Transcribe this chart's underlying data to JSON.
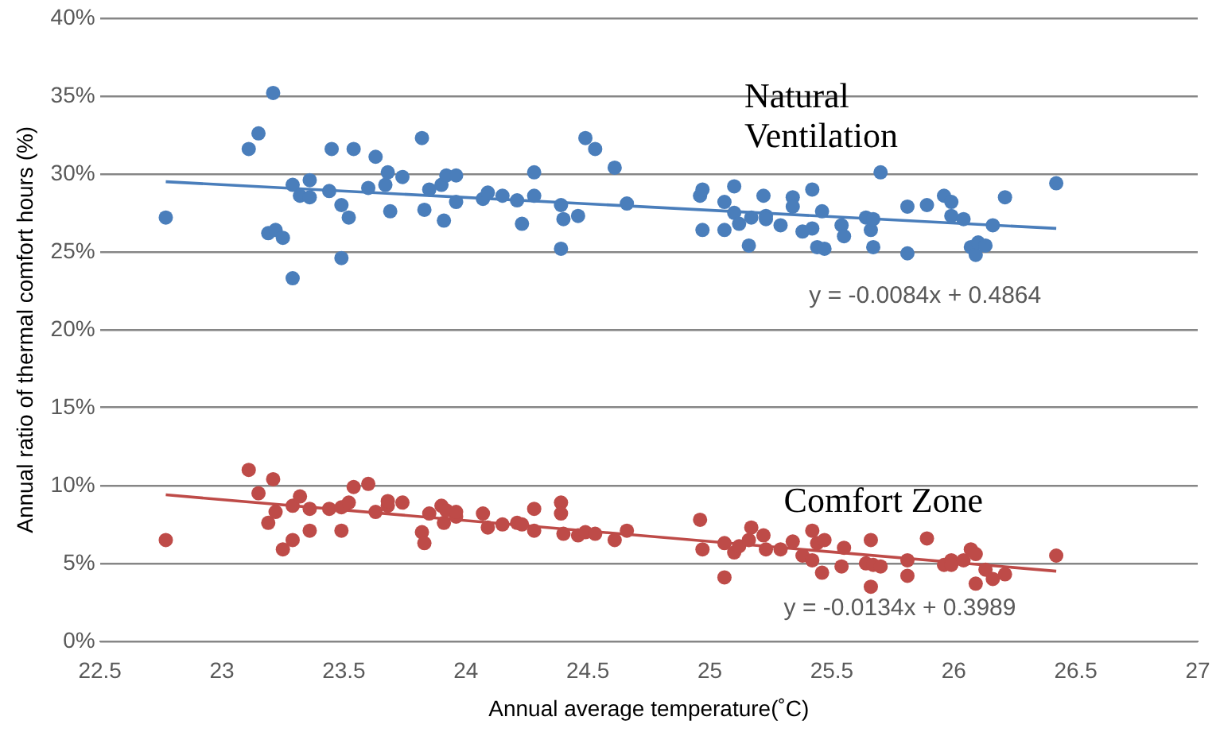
{
  "chart_data": {
    "type": "scatter",
    "xlabel": "Annual average temperature(˚C)",
    "ylabel": "Annual ratio of thermal comfort hours (%)",
    "xlim": [
      22.5,
      27
    ],
    "xticks": [
      22.5,
      23,
      23.5,
      24,
      24.5,
      25,
      25.5,
      26,
      26.5,
      27
    ],
    "ylim": [
      0,
      40
    ],
    "yticks": [
      {
        "value": 0,
        "label": "0%"
      },
      {
        "value": 5,
        "label": "5%"
      },
      {
        "value": 10,
        "label": "10%"
      },
      {
        "value": 15,
        "label": "15%"
      },
      {
        "value": 20,
        "label": "20%"
      },
      {
        "value": 25,
        "label": "25%"
      },
      {
        "value": 30,
        "label": "30%"
      },
      {
        "value": 35,
        "label": "35%"
      },
      {
        "value": 40,
        "label": "40%"
      }
    ],
    "grid": "y",
    "legend": false,
    "series": [
      {
        "marker": "circle",
        "color": "#4a7ebb",
        "x": [
          22.77,
          23.11,
          23.15,
          23.21,
          23.19,
          23.22,
          23.25,
          23.29,
          23.29,
          23.32,
          23.36,
          23.36,
          23.44,
          23.45,
          23.49,
          23.49,
          23.52,
          23.54,
          23.6,
          23.63,
          23.67,
          23.68,
          23.69,
          23.74,
          23.82,
          23.83,
          23.85,
          23.9,
          23.91,
          23.92,
          23.96,
          23.96,
          24.07,
          24.09,
          24.15,
          24.21,
          24.23,
          24.28,
          24.28,
          24.39,
          24.39,
          24.4,
          24.46,
          24.49,
          24.53,
          24.61,
          24.66,
          24.96,
          24.97,
          24.97,
          25.06,
          25.06,
          25.1,
          25.1,
          25.12,
          25.16,
          25.17,
          25.22,
          25.23,
          25.23,
          25.29,
          25.34,
          25.34,
          25.38,
          25.42,
          25.42,
          25.44,
          25.46,
          25.47,
          25.54,
          25.55,
          25.64,
          25.66,
          25.67,
          25.67,
          25.7,
          25.81,
          25.81,
          25.89,
          25.96,
          25.99,
          25.99,
          26.04,
          26.07,
          26.09,
          26.1,
          26.13,
          26.16,
          26.21,
          26.42
        ],
        "values": [
          27.2,
          31.6,
          32.6,
          35.2,
          26.2,
          26.4,
          25.9,
          23.3,
          29.3,
          28.6,
          29.6,
          28.5,
          28.9,
          31.6,
          28.0,
          24.6,
          27.2,
          31.6,
          29.1,
          31.1,
          29.3,
          30.1,
          27.6,
          29.8,
          32.3,
          27.7,
          29.0,
          29.3,
          27.0,
          29.9,
          29.9,
          28.2,
          28.4,
          28.8,
          28.6,
          28.3,
          26.8,
          30.1,
          28.6,
          28.0,
          25.2,
          27.1,
          27.3,
          32.3,
          31.6,
          30.4,
          28.1,
          28.6,
          29.0,
          26.4,
          28.2,
          26.4,
          29.2,
          27.5,
          26.8,
          25.4,
          27.2,
          28.6,
          27.3,
          27.1,
          26.7,
          28.5,
          27.9,
          26.3,
          29.0,
          26.5,
          25.3,
          27.6,
          25.2,
          26.7,
          26.0,
          27.2,
          26.4,
          25.3,
          27.1,
          30.1,
          27.9,
          24.9,
          28.0,
          28.6,
          28.2,
          27.3,
          27.1,
          25.3,
          24.8,
          25.6,
          25.4,
          26.7,
          28.5,
          29.4
        ]
      },
      {
        "marker": "circle",
        "color": "#be4b48",
        "x": [
          22.77,
          23.11,
          23.15,
          23.21,
          23.19,
          23.22,
          23.25,
          23.29,
          23.29,
          23.32,
          23.36,
          23.36,
          23.44,
          23.49,
          23.49,
          23.52,
          23.54,
          23.6,
          23.63,
          23.68,
          23.68,
          23.74,
          23.82,
          23.83,
          23.85,
          23.9,
          23.91,
          23.92,
          23.96,
          23.96,
          24.07,
          24.09,
          24.15,
          24.21,
          24.23,
          24.28,
          24.28,
          24.39,
          24.39,
          24.4,
          24.46,
          24.49,
          24.53,
          24.61,
          24.66,
          24.96,
          24.97,
          25.06,
          25.06,
          25.1,
          25.12,
          25.17,
          25.16,
          25.22,
          25.23,
          25.29,
          25.34,
          25.38,
          25.42,
          25.42,
          25.44,
          25.46,
          25.47,
          25.54,
          25.55,
          25.64,
          25.66,
          25.66,
          25.67,
          25.7,
          25.81,
          25.81,
          25.89,
          25.96,
          25.99,
          25.99,
          26.04,
          26.07,
          26.09,
          26.09,
          26.13,
          26.16,
          26.21,
          26.42
        ],
        "values": [
          6.5,
          11.0,
          9.5,
          10.4,
          7.6,
          8.3,
          5.9,
          6.5,
          8.7,
          9.3,
          8.5,
          7.1,
          8.5,
          8.6,
          7.1,
          8.9,
          9.9,
          10.1,
          8.3,
          8.7,
          9.0,
          8.9,
          7.0,
          6.3,
          8.2,
          8.7,
          7.6,
          8.4,
          8.0,
          8.3,
          8.2,
          7.3,
          7.5,
          7.6,
          7.5,
          8.5,
          7.1,
          8.9,
          8.2,
          6.9,
          6.8,
          7.0,
          6.9,
          6.5,
          7.1,
          7.8,
          5.9,
          4.1,
          6.3,
          5.7,
          6.1,
          7.3,
          6.5,
          6.8,
          5.9,
          5.9,
          6.4,
          5.5,
          7.1,
          5.2,
          6.3,
          4.4,
          6.5,
          4.8,
          6.0,
          5.0,
          6.5,
          3.5,
          4.9,
          4.8,
          5.2,
          4.2,
          6.6,
          4.9,
          5.2,
          4.9,
          5.2,
          5.9,
          5.6,
          3.7,
          4.6,
          4.0,
          4.3,
          5.5
        ]
      },
      {
        "type": "line",
        "marker": "none",
        "color": "#4a7ebb",
        "x": [
          22.77,
          26.42
        ],
        "values": [
          29.5,
          26.5
        ]
      },
      {
        "type": "line",
        "marker": "none",
        "color": "#be4b48",
        "x": [
          22.77,
          26.42
        ],
        "values": [
          9.4,
          4.5
        ]
      }
    ],
    "annotations": [
      "Natural Ventilation",
      "y = -0.0084x + 0.4864",
      "Comfort Zone",
      "y = -0.0134x + 0.3989"
    ]
  }
}
